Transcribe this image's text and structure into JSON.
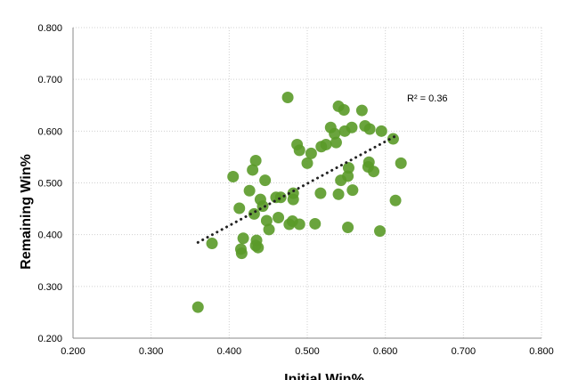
{
  "chart_data": {
    "type": "scatter",
    "xlabel": "Initial Win%",
    "ylabel": "Remaining Win%",
    "xlim": [
      0.2,
      0.8
    ],
    "ylim": [
      0.2,
      0.8
    ],
    "x_ticks": [
      "0.200",
      "0.300",
      "0.400",
      "0.500",
      "0.600",
      "0.700",
      "0.800"
    ],
    "y_ticks": [
      "0.200",
      "0.300",
      "0.400",
      "0.500",
      "0.600",
      "0.700",
      "0.800"
    ],
    "grid": true,
    "marker_color": "#5a9a28",
    "trendline": {
      "type": "linear",
      "style": "dotted",
      "x_range": [
        0.36,
        0.615
      ],
      "y_range": [
        0.385,
        0.592
      ]
    },
    "annotation": "R² = 0.36",
    "series": [
      {
        "points": [
          [
            0.36,
            0.26
          ],
          [
            0.378,
            0.383
          ],
          [
            0.405,
            0.512
          ],
          [
            0.413,
            0.451
          ],
          [
            0.415,
            0.372
          ],
          [
            0.416,
            0.364
          ],
          [
            0.418,
            0.393
          ],
          [
            0.426,
            0.485
          ],
          [
            0.43,
            0.525
          ],
          [
            0.434,
            0.543
          ],
          [
            0.432,
            0.44
          ],
          [
            0.434,
            0.379
          ],
          [
            0.435,
            0.389
          ],
          [
            0.437,
            0.375
          ],
          [
            0.44,
            0.468
          ],
          [
            0.443,
            0.455
          ],
          [
            0.446,
            0.505
          ],
          [
            0.448,
            0.427
          ],
          [
            0.451,
            0.41
          ],
          [
            0.46,
            0.472
          ],
          [
            0.463,
            0.433
          ],
          [
            0.466,
            0.472
          ],
          [
            0.475,
            0.665
          ],
          [
            0.477,
            0.42
          ],
          [
            0.481,
            0.426
          ],
          [
            0.482,
            0.468
          ],
          [
            0.482,
            0.48
          ],
          [
            0.487,
            0.574
          ],
          [
            0.49,
            0.42
          ],
          [
            0.49,
            0.563
          ],
          [
            0.5,
            0.538
          ],
          [
            0.505,
            0.557
          ],
          [
            0.51,
            0.421
          ],
          [
            0.517,
            0.48
          ],
          [
            0.518,
            0.57
          ],
          [
            0.524,
            0.574
          ],
          [
            0.53,
            0.607
          ],
          [
            0.535,
            0.595
          ],
          [
            0.537,
            0.578
          ],
          [
            0.54,
            0.478
          ],
          [
            0.54,
            0.648
          ],
          [
            0.543,
            0.505
          ],
          [
            0.547,
            0.641
          ],
          [
            0.548,
            0.6
          ],
          [
            0.552,
            0.414
          ],
          [
            0.552,
            0.513
          ],
          [
            0.553,
            0.529
          ],
          [
            0.557,
            0.607
          ],
          [
            0.558,
            0.486
          ],
          [
            0.57,
            0.64
          ],
          [
            0.574,
            0.61
          ],
          [
            0.578,
            0.531
          ],
          [
            0.579,
            0.54
          ],
          [
            0.58,
            0.604
          ],
          [
            0.585,
            0.522
          ],
          [
            0.593,
            0.407
          ],
          [
            0.595,
            0.6
          ],
          [
            0.61,
            0.585
          ],
          [
            0.613,
            0.466
          ],
          [
            0.62,
            0.538
          ]
        ]
      }
    ]
  }
}
